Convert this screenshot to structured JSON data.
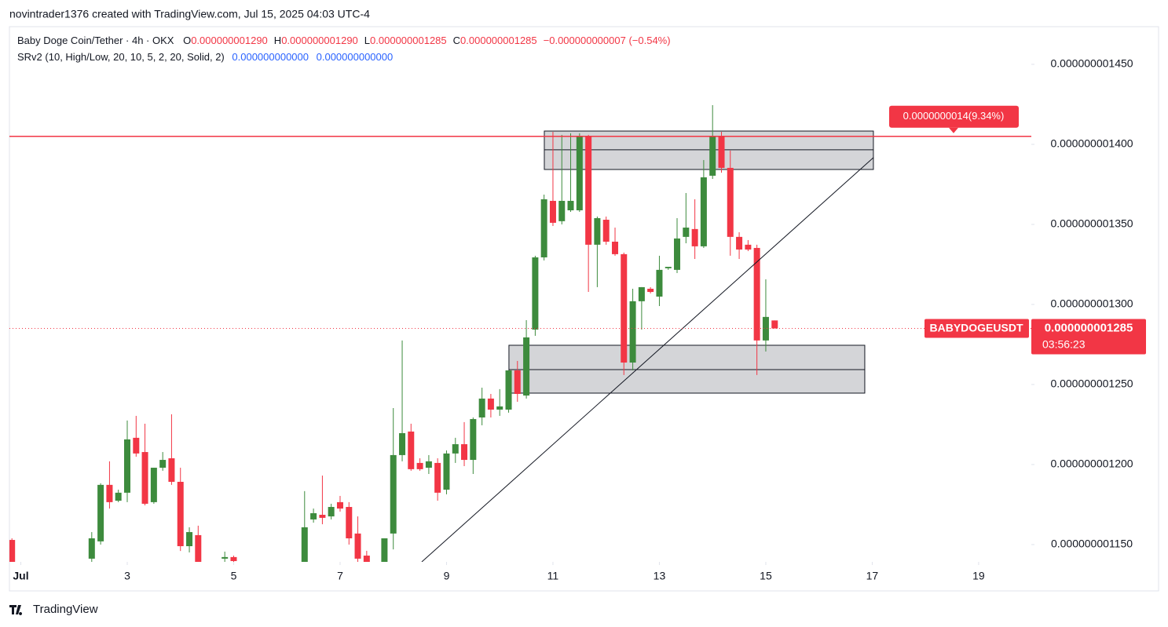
{
  "chart_data": {
    "type": "candlestick",
    "watermark": "novintrader1376 created with TradingView.com, Jul 15, 2025 04:03 UTC-4",
    "title": "Baby Doge Coin/Tether · 4h · OKX",
    "ohlc_legend": [
      {
        "key": "O",
        "value": "0.000000001290"
      },
      {
        "key": "H",
        "value": "0.000000001290"
      },
      {
        "key": "L",
        "value": "0.000000001285"
      },
      {
        "key": "C",
        "value": "0.000000001285"
      }
    ],
    "change": "−0.000000000007 (−0.54%)",
    "indicator": {
      "name": "SRv2 (10, High/Low, 20, 10, 5, 2, 20, Solid, 2)",
      "values": [
        "0.000000000000",
        "0.000000000000"
      ]
    },
    "symbol": "BABYDOGEUSDT",
    "last_price": {
      "value": 1.285e-09,
      "label": "0.000000001285"
    },
    "countdown": "03:56:23",
    "footer": "TradingView",
    "up_color": "#3d8b3d",
    "down_color": "#f23645",
    "grid": false,
    "xlim": [
      0.786,
      19.99
    ],
    "xticks": [
      {
        "value": 1,
        "label": "Jul"
      },
      3,
      5,
      7,
      9,
      11,
      13,
      15,
      17,
      19
    ],
    "ylim": [
      1.1392e-09,
      1.4735e-09
    ],
    "yticks": [
      {
        "value": 1.15e-09,
        "label": "0.000000001150"
      },
      {
        "value": 1.2e-09,
        "label": "0.000000001200"
      },
      {
        "value": 1.25e-09,
        "label": "0.000000001250"
      },
      {
        "value": 1.3e-09,
        "label": "0.000000001300"
      },
      {
        "value": 1.35e-09,
        "label": "0.000000001350"
      },
      {
        "value": 1.4e-09,
        "label": "0.000000001400"
      },
      {
        "value": 1.45e-09,
        "label": "0.000000001450"
      }
    ],
    "x": [
      0.833,
      2.333,
      2.5,
      2.667,
      2.833,
      3,
      3.167,
      3.333,
      3.5,
      3.667,
      3.833,
      4,
      4.167,
      4.333,
      4.833,
      5,
      6.333,
      6.5,
      6.667,
      6.833,
      7,
      7.167,
      7.333,
      7.5,
      7.833,
      8,
      8.167,
      8.333,
      8.5,
      8.667,
      8.833,
      9,
      9.167,
      9.333,
      9.5,
      9.667,
      9.833,
      10,
      10.167,
      10.333,
      10.5,
      10.667,
      10.833,
      11,
      11.167,
      11.333,
      11.5,
      11.667,
      11.833,
      12,
      12.167,
      12.333,
      12.5,
      12.667,
      12.833,
      13,
      13.167,
      13.333,
      13.5,
      13.667,
      13.833,
      14,
      14.167,
      14.333,
      14.5,
      14.667,
      14.833,
      15,
      15.167
    ],
    "open": [
      1.1529e-09,
      1.1412e-09,
      1.152e-09,
      1.1873e-09,
      1.1774e-09,
      1.1824e-09,
      1.2167e-09,
      1.2078e-09,
      1.1765e-09,
      1.198e-09,
      1.2039e-09,
      1.1892e-09,
      1.149e-09,
      1.1559e-09,
      1.1412e-09,
      1.1422e-09,
      1.1372e-09,
      1.1657e-09,
      1.1686e-09,
      1.1676e-09,
      1.1765e-09,
      1.1735e-09,
      1.1569e-09,
      1.1431e-09,
      1.1372e-09,
      1.1569e-09,
      1.2059e-09,
      1.2206e-09,
      1.201e-09,
      1.198e-09,
      1.201e-09,
      1.1843e-09,
      1.2069e-09,
      1.2127e-09,
      1.2029e-09,
      1.2294e-09,
      1.2412e-09,
      1.2343e-09,
      1.2343e-09,
      1.2588e-09,
      1.2431e-09,
      1.2843e-09,
      1.3294e-09,
      1.3647e-09,
      1.352e-09,
      1.3588e-09,
      1.3588e-09,
      1.4049e-09,
      1.3373e-09,
      1.3529e-09,
      1.3392e-09,
      1.3314e-09,
      1.2637e-09,
      1.302e-09,
      1.3098e-09,
      1.3049e-09,
      1.3226e-09,
      1.3216e-09,
      1.3422e-09,
      1.3471e-09,
      1.3363e-09,
      1.3804e-09,
      1.4049e-09,
      1.3853e-09,
      1.3422e-09,
      1.3373e-09,
      1.3353e-09,
      1.2775e-09,
      1.29e-09
    ],
    "high": [
      1.1539e-09,
      1.1578e-09,
      1.1883e-09,
      1.202e-09,
      1.1843e-09,
      1.2275e-09,
      1.2304e-09,
      1.2255e-09,
      1.198e-09,
      1.2078e-09,
      1.2314e-09,
      1.198e-09,
      1.1608e-09,
      1.1618e-09,
      1.1456e-09,
      1.1431e-09,
      1.1834e-09,
      1.1725e-09,
      1.1931e-09,
      1.1755e-09,
      1.1804e-09,
      1.1765e-09,
      1.1676e-09,
      1.1461e-09,
      1.1539e-09,
      1.2353e-09,
      1.2775e-09,
      1.2255e-09,
      1.2039e-09,
      1.2059e-09,
      1.2039e-09,
      1.2088e-09,
      1.2167e-09,
      1.2265e-09,
      1.2294e-09,
      1.248e-09,
      1.2441e-09,
      1.2471e-09,
      1.2588e-09,
      1.2647e-09,
      1.2902e-09,
      1.3304e-09,
      1.3686e-09,
      1.4078e-09,
      1.4059e-09,
      1.4069e-09,
      1.4069e-09,
      1.4059e-09,
      1.3549e-09,
      1.3549e-09,
      1.348e-09,
      1.3324e-09,
      1.3098e-09,
      1.3108e-09,
      1.3108e-09,
      1.3304e-09,
      1.3235e-09,
      1.3539e-09,
      1.3696e-09,
      1.3657e-09,
      1.3902e-09,
      1.4245e-09,
      1.4078e-09,
      1.3961e-09,
      1.3451e-09,
      1.3402e-09,
      1.3373e-09,
      1.3157e-09,
      1.29e-09
    ],
    "low": [
      1.1348e-09,
      1.1392e-09,
      1.15e-09,
      1.1725e-09,
      1.1765e-09,
      1.1765e-09,
      1.2049e-09,
      1.1745e-09,
      1.1755e-09,
      1.1961e-09,
      1.1873e-09,
      1.146e-09,
      1.1451e-09,
      1.1362e-09,
      1.1392e-09,
      1.1372e-09,
      1.1353e-09,
      1.1637e-09,
      1.1627e-09,
      1.1657e-09,
      1.1706e-09,
      1.15e-09,
      1.1392e-09,
      1.1372e-09,
      1.1353e-09,
      1.147e-09,
      1.202e-09,
      1.1961e-09,
      1.1961e-09,
      1.1941e-09,
      1.1774e-09,
      1.1814e-09,
      1.201e-09,
      1.199e-09,
      1.1941e-09,
      1.2245e-09,
      1.2294e-09,
      1.2304e-09,
      1.2324e-09,
      1.2392e-09,
      1.2412e-09,
      1.2804e-09,
      1.3275e-09,
      1.349e-09,
      1.35e-09,
      1.3578e-09,
      1.3578e-09,
      1.3078e-09,
      1.3108e-09,
      1.3373e-09,
      1.3304e-09,
      1.2559e-09,
      1.2588e-09,
      1.2843e-09,
      1.3069e-09,
      1.299e-09,
      1.3216e-09,
      1.3196e-09,
      1.3382e-09,
      1.3284e-09,
      1.3353e-09,
      1.3784e-09,
      1.3823e-09,
      1.3304e-09,
      1.3284e-09,
      1.3333e-09,
      1.2559e-09,
      1.2706e-09,
      1.285e-09
    ],
    "close": [
      1.1372e-09,
      1.1539e-09,
      1.1873e-09,
      1.1765e-09,
      1.1824e-09,
      1.2157e-09,
      1.2069e-09,
      1.1755e-09,
      1.198e-09,
      1.2029e-09,
      1.1892e-09,
      1.149e-09,
      1.1578e-09,
      1.1382e-09,
      1.1422e-09,
      1.1397e-09,
      1.1608e-09,
      1.1696e-09,
      1.1667e-09,
      1.1735e-09,
      1.1725e-09,
      1.1539e-09,
      1.1412e-09,
      1.1392e-09,
      1.1539e-09,
      1.2059e-09,
      1.2196e-09,
      1.1971e-09,
      1.1971e-09,
      1.202e-09,
      1.1824e-09,
      1.2069e-09,
      1.2127e-09,
      1.2029e-09,
      1.2284e-09,
      1.2412e-09,
      1.2343e-09,
      1.2363e-09,
      1.2588e-09,
      1.2441e-09,
      1.2794e-09,
      1.3294e-09,
      1.3657e-09,
      1.351e-09,
      1.3647e-09,
      1.3647e-09,
      1.4049e-09,
      1.3373e-09,
      1.3539e-09,
      1.3392e-09,
      1.3314e-09,
      1.2637e-09,
      1.302e-09,
      1.3108e-09,
      1.3078e-09,
      1.3216e-09,
      1.3235e-09,
      1.3412e-09,
      1.348e-09,
      1.3363e-09,
      1.3794e-09,
      1.4049e-09,
      1.3853e-09,
      1.3422e-09,
      1.3343e-09,
      1.3343e-09,
      1.2775e-09,
      1.2922e-09,
      1.285e-09
    ],
    "zones": [
      {
        "x": [
          10.838,
          17.022
        ],
        "y": [
          1.3843e-09,
          1.4083e-09
        ],
        "mid": 1.3966e-09
      },
      {
        "x": [
          10.173,
          16.86
        ],
        "y": [
          1.2446e-09,
          1.2745e-09
        ],
        "mid": 1.2593e-09
      }
    ],
    "trendline": {
      "x": [
        8.535,
        17.022
      ],
      "y": [
        1.1392e-09,
        1.3917e-09
      ]
    },
    "resistance": {
      "value": 1.405e-09,
      "label": "0.0000000014(9.34%)",
      "color": "#f23645"
    }
  }
}
